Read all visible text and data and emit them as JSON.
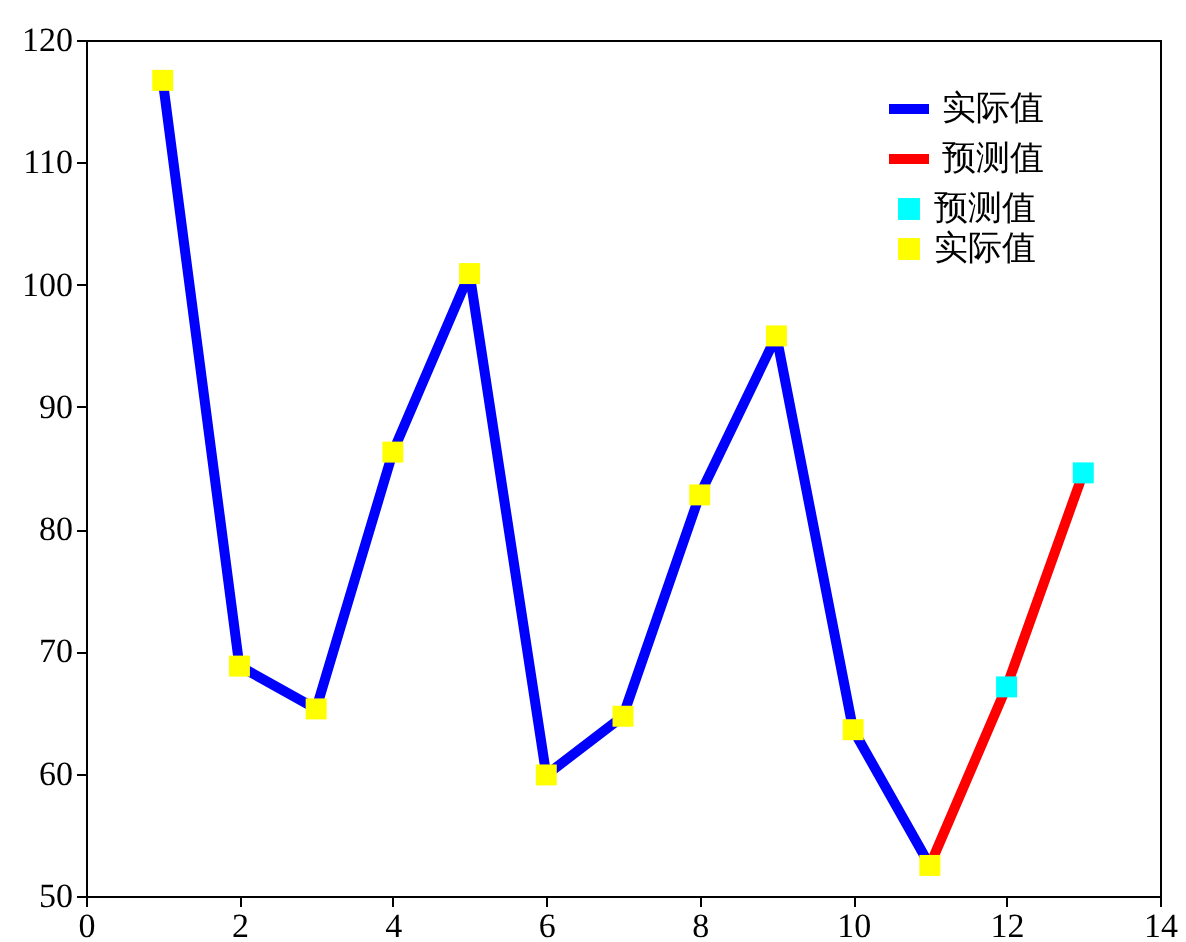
{
  "chart_data": {
    "type": "line",
    "xlim": [
      0,
      14
    ],
    "xticks": [
      0,
      2,
      4,
      6,
      8,
      10,
      12,
      14
    ],
    "ylim": [
      50,
      120
    ],
    "yticks": [
      50,
      60,
      70,
      80,
      90,
      100,
      110,
      120
    ],
    "legend": "top right",
    "line_style": "solid",
    "grid": false,
    "series": [
      {
        "name": "实际值",
        "color": "#0000ff",
        "x": [
          1,
          2,
          3,
          4,
          5,
          6,
          7,
          8,
          9,
          10,
          11
        ],
        "values": [
          116.7,
          68.8,
          65.3,
          86.3,
          100.9,
          59.9,
          64.7,
          82.8,
          95.8,
          63.6,
          52.5
        ]
      },
      {
        "name": "预测值",
        "color": "#ff0000",
        "x": [
          11,
          12,
          13
        ],
        "values": [
          52.5,
          67.1,
          84.6
        ]
      },
      {
        "type": "scatter",
        "name": "预测值",
        "color": "#00ffff",
        "marker": "square",
        "x": [
          12,
          13
        ],
        "values": [
          67.1,
          84.6
        ]
      },
      {
        "type": "scatter",
        "name": "实际值",
        "color": "#ffff00",
        "marker": "square",
        "x": [
          1,
          2,
          3,
          4,
          5,
          6,
          7,
          8,
          9,
          10,
          11
        ],
        "values": [
          116.7,
          68.8,
          65.3,
          86.3,
          100.9,
          59.9,
          64.7,
          82.8,
          95.8,
          63.6,
          52.5
        ]
      }
    ]
  }
}
